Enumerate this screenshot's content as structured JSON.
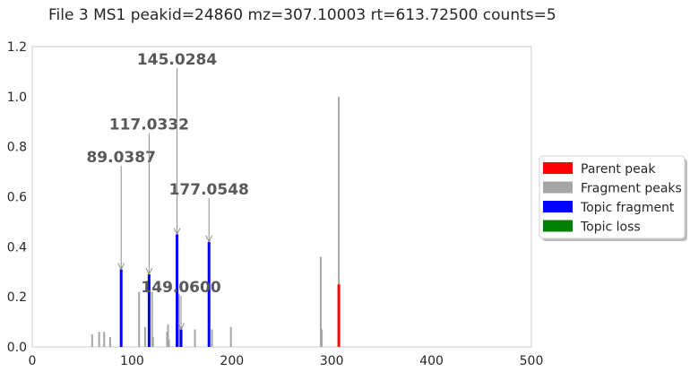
{
  "chart_data": {
    "type": "bar",
    "title": "File 3 MS1 peakid=24860 mz=307.10003 rt=613.72500 counts=5",
    "xlabel": "",
    "ylabel": "",
    "xlim": [
      0,
      500
    ],
    "ylim": [
      0,
      1.2
    ],
    "grid": false,
    "legend_position": "center-right",
    "x_ticks": [
      "0",
      "100",
      "200",
      "300",
      "400",
      "500"
    ],
    "y_ticks": [
      "0.0",
      "0.2",
      "0.4",
      "0.6",
      "0.8",
      "1.0",
      "1.2"
    ],
    "series": [
      {
        "name": "Parent peak",
        "color": "#ff0000",
        "points": [
          {
            "x": 307.1,
            "y": 0.25
          }
        ]
      },
      {
        "name": "Fragment peaks",
        "color": "#a6a6a6",
        "points": [
          {
            "x": 60.0,
            "y": 0.05
          },
          {
            "x": 67.0,
            "y": 0.06
          },
          {
            "x": 72.0,
            "y": 0.06
          },
          {
            "x": 78.0,
            "y": 0.04
          },
          {
            "x": 107.0,
            "y": 0.22
          },
          {
            "x": 113.0,
            "y": 0.08
          },
          {
            "x": 120.0,
            "y": 0.22
          },
          {
            "x": 121.0,
            "y": 0.04
          },
          {
            "x": 135.0,
            "y": 0.06
          },
          {
            "x": 136.0,
            "y": 0.09
          },
          {
            "x": 137.0,
            "y": 0.03
          },
          {
            "x": 147.0,
            "y": 0.21
          },
          {
            "x": 163.0,
            "y": 0.07
          },
          {
            "x": 180.0,
            "y": 0.07
          },
          {
            "x": 199.0,
            "y": 0.08
          },
          {
            "x": 289.0,
            "y": 0.36
          },
          {
            "x": 290.0,
            "y": 0.07
          },
          {
            "x": 307.1,
            "y": 1.0
          }
        ]
      },
      {
        "name": "Topic fragment",
        "color": "#0000ff",
        "points": [
          {
            "x": 89.0387,
            "y": 0.31
          },
          {
            "x": 117.0332,
            "y": 0.29
          },
          {
            "x": 145.0284,
            "y": 0.45
          },
          {
            "x": 149.06,
            "y": 0.07
          },
          {
            "x": 177.0548,
            "y": 0.42
          }
        ]
      },
      {
        "name": "Topic loss",
        "color": "#008000",
        "points": []
      }
    ],
    "annotations": [
      {
        "text": "89.0387",
        "x": 89.0387,
        "y": 0.31,
        "text_y": 0.76
      },
      {
        "text": "117.0332",
        "x": 117.0332,
        "y": 0.29,
        "text_y": 0.89
      },
      {
        "text": "145.0284",
        "x": 145.0284,
        "y": 0.45,
        "text_y": 1.15
      },
      {
        "text": "177.0548",
        "x": 177.0548,
        "y": 0.42,
        "text_y": 0.63
      },
      {
        "text": "149.0600",
        "x": 149.06,
        "y": 0.07,
        "text_y": 0.24
      }
    ]
  }
}
